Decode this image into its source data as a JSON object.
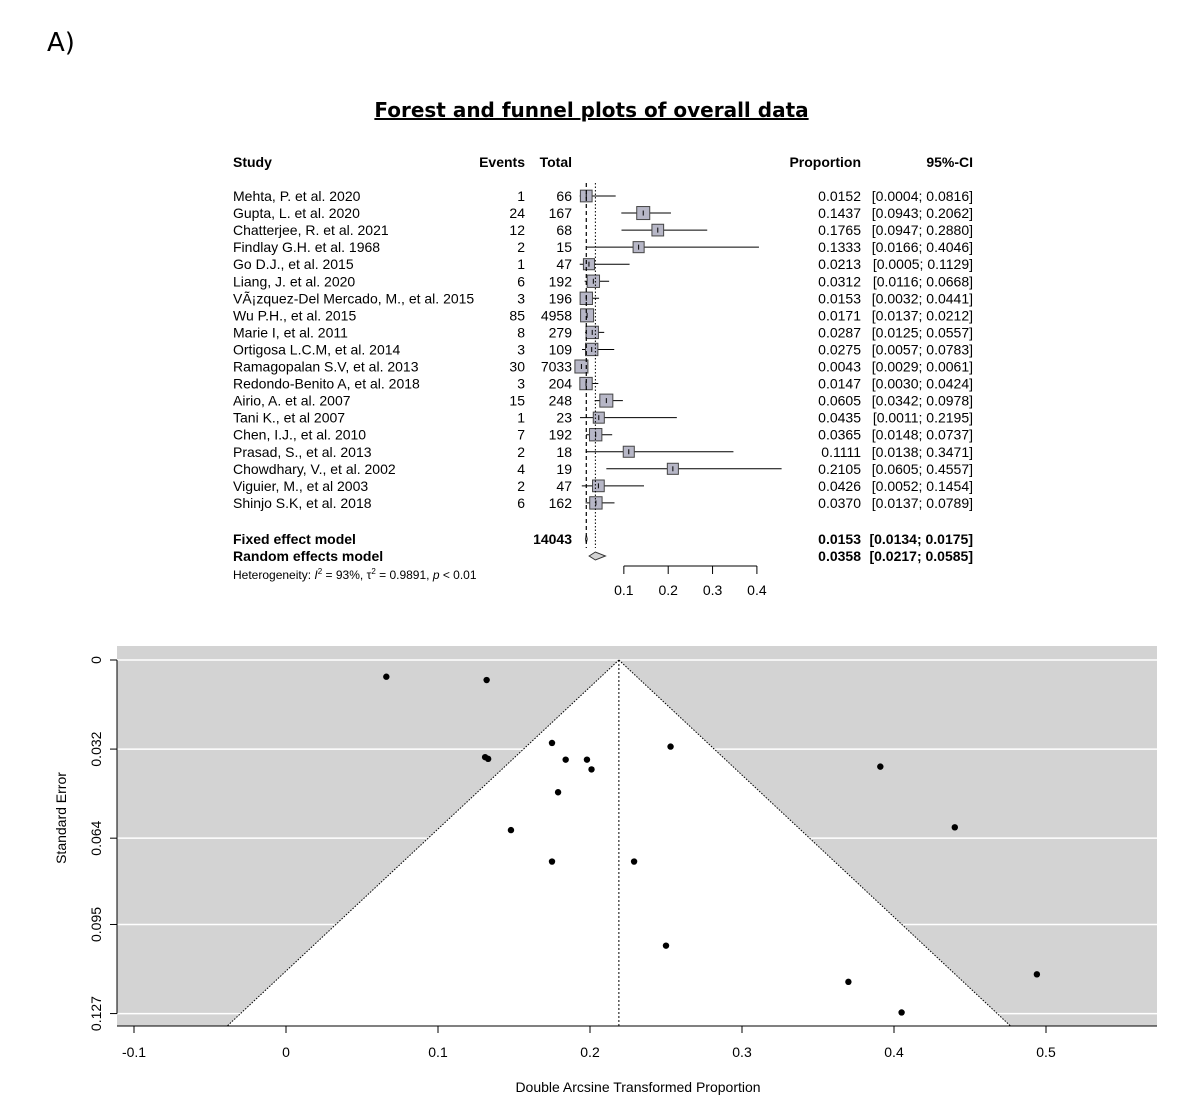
{
  "panel_label": "A)",
  "title": "Forest and funnel plots of overall data",
  "chart_data": [
    {
      "type": "forest",
      "headers": {
        "study": "Study",
        "events": "Events",
        "total": "Total",
        "proportion": "Proportion",
        "ci": "95%-CI"
      },
      "xaxis": {
        "ticks": [
          0.1,
          0.2,
          0.3,
          0.4
        ],
        "xlim": [
          0,
          0.5
        ]
      },
      "reference_lines": {
        "fixed": 0.0153,
        "random": 0.0358
      },
      "studies": [
        {
          "name": "Mehta, P. et al. 2020",
          "events": "1",
          "total": "66",
          "proportion": "0.0152",
          "ci": "[0.0004; 0.0816]",
          "est": 0.0152,
          "lower": 0.0004,
          "upper": 0.0816,
          "weight": 0.9
        },
        {
          "name": "Gupta, L. et al. 2020",
          "events": "24",
          "total": "167",
          "proportion": "0.1437",
          "ci": "[0.0943; 0.2062]",
          "est": 0.1437,
          "lower": 0.0943,
          "upper": 0.2062,
          "weight": 1.0
        },
        {
          "name": "Chatterjee, R. et al. 2021",
          "events": "12",
          "total": "68",
          "proportion": "0.1765",
          "ci": "[0.0947; 0.2880]",
          "est": 0.1765,
          "lower": 0.0947,
          "upper": 0.288,
          "weight": 0.9
        },
        {
          "name": "Findlay G.H. et al. 1968",
          "events": "2",
          "total": "15",
          "proportion": "0.1333",
          "ci": "[0.0166; 0.4046]",
          "est": 0.1333,
          "lower": 0.0166,
          "upper": 0.4046,
          "weight": 0.85
        },
        {
          "name": "Go D.J., et al. 2015",
          "events": "1",
          "total": "47",
          "proportion": "0.0213",
          "ci": "[0.0005; 0.1129]",
          "est": 0.0213,
          "lower": 0.0005,
          "upper": 0.1129,
          "weight": 0.85
        },
        {
          "name": "Liang, J. et al. 2020",
          "events": "6",
          "total": "192",
          "proportion": "0.0312",
          "ci": "[0.0116; 0.0668]",
          "est": 0.0312,
          "lower": 0.0116,
          "upper": 0.0668,
          "weight": 0.95
        },
        {
          "name": "VÃ¡zquez-Del Mercado, M., et al. 2015",
          "events": "3",
          "total": "196",
          "proportion": "0.0153",
          "ci": "[0.0032; 0.0441]",
          "est": 0.0153,
          "lower": 0.0032,
          "upper": 0.0441,
          "weight": 0.95
        },
        {
          "name": "Wu P.H., et al. 2015",
          "events": "85",
          "total": "4958",
          "proportion": "0.0171",
          "ci": "[0.0137; 0.0212]",
          "est": 0.0171,
          "lower": 0.0137,
          "upper": 0.0212,
          "weight": 1.0
        },
        {
          "name": "Marie I, et al. 2011",
          "events": "8",
          "total": "279",
          "proportion": "0.0287",
          "ci": "[0.0125; 0.0557]",
          "est": 0.0287,
          "lower": 0.0125,
          "upper": 0.0557,
          "weight": 0.95
        },
        {
          "name": "Ortigosa L.C.M, et al. 2014",
          "events": "3",
          "total": "109",
          "proportion": "0.0275",
          "ci": "[0.0057; 0.0783]",
          "est": 0.0275,
          "lower": 0.0057,
          "upper": 0.0783,
          "weight": 0.95
        },
        {
          "name": "Ramagopalan S.V, et al. 2013",
          "events": "30",
          "total": "7033",
          "proportion": "0.0043",
          "ci": "[0.0029; 0.0061]",
          "est": 0.0043,
          "lower": 0.0029,
          "upper": 0.0061,
          "weight": 1.0
        },
        {
          "name": "Redondo-Benito A, et al. 2018",
          "events": "3",
          "total": "204",
          "proportion": "0.0147",
          "ci": "[0.0030; 0.0424]",
          "est": 0.0147,
          "lower": 0.003,
          "upper": 0.0424,
          "weight": 0.95
        },
        {
          "name": "Airio, A. et al. 2007",
          "events": "15",
          "total": "248",
          "proportion": "0.0605",
          "ci": "[0.0342; 0.0978]",
          "est": 0.0605,
          "lower": 0.0342,
          "upper": 0.0978,
          "weight": 1.0
        },
        {
          "name": "Tani K., et al 2007",
          "events": "1",
          "total": "23",
          "proportion": "0.0435",
          "ci": "[0.0011; 0.2195]",
          "est": 0.0435,
          "lower": 0.0011,
          "upper": 0.2195,
          "weight": 0.85
        },
        {
          "name": "Chen, I.J., et al. 2010",
          "events": "7",
          "total": "192",
          "proportion": "0.0365",
          "ci": "[0.0148; 0.0737]",
          "est": 0.0365,
          "lower": 0.0148,
          "upper": 0.0737,
          "weight": 0.95
        },
        {
          "name": "Prasad, S., et al. 2013",
          "events": "2",
          "total": "18",
          "proportion": "0.1111",
          "ci": "[0.0138; 0.3471]",
          "est": 0.1111,
          "lower": 0.0138,
          "upper": 0.3471,
          "weight": 0.85
        },
        {
          "name": "Chowdhary, V., et al. 2002",
          "events": "4",
          "total": "19",
          "proportion": "0.2105",
          "ci": "[0.0605; 0.4557]",
          "est": 0.2105,
          "lower": 0.0605,
          "upper": 0.4557,
          "weight": 0.85
        },
        {
          "name": "Viguier, M., et al 2003",
          "events": "2",
          "total": "47",
          "proportion": "0.0426",
          "ci": "[0.0052; 0.1454]",
          "est": 0.0426,
          "lower": 0.0052,
          "upper": 0.1454,
          "weight": 0.9
        },
        {
          "name": "Shinjo S.K, et al. 2018",
          "events": "6",
          "total": "162",
          "proportion": "0.0370",
          "ci": "[0.0137; 0.0789]",
          "est": 0.037,
          "lower": 0.0137,
          "upper": 0.0789,
          "weight": 0.95
        }
      ],
      "summaries": [
        {
          "name": "Fixed effect model",
          "total": "14043",
          "proportion": "0.0153",
          "ci": "[0.0134; 0.0175]",
          "est": 0.0153,
          "lower": 0.0134,
          "upper": 0.0175
        },
        {
          "name": "Random effects model",
          "total": "",
          "proportion": "0.0358",
          "ci": "[0.0217; 0.0585]",
          "est": 0.0358,
          "lower": 0.0217,
          "upper": 0.0585
        }
      ],
      "heterogeneity": {
        "prefix": "Heterogeneity: ",
        "i2_symbol": "I",
        "i2": " = 93%, ",
        "tau2_symbol": "τ",
        "tau2": " = 0.9891, ",
        "p_symbol": "p",
        "p": " < 0.01",
        "sup": "2"
      }
    },
    {
      "type": "scatter",
      "subtype": "funnel",
      "xlabel": "Double Arcsine Transformed Proportion",
      "ylabel": "Standard Error",
      "xlim": [
        -0.1,
        0.57
      ],
      "ylim": [
        0.1275,
        0
      ],
      "xticks": [
        -0.1,
        0,
        0.1,
        0.2,
        0.3,
        0.4,
        0.5
      ],
      "xtick_labels": [
        "-0.1",
        "0",
        "0.1",
        "0.2",
        "0.3",
        "0.4",
        "0.5"
      ],
      "yticks": [
        0,
        0.032,
        0.064,
        0.095,
        0.127
      ],
      "ytick_labels": [
        "0",
        "0.032",
        "0.064",
        "0.095",
        "0.127"
      ],
      "center": 0.219,
      "points": [
        {
          "x": 0.066,
          "y": 0.006
        },
        {
          "x": 0.132,
          "y": 0.0072
        },
        {
          "x": 0.175,
          "y": 0.0298
        },
        {
          "x": 0.253,
          "y": 0.0311
        },
        {
          "x": 0.184,
          "y": 0.0358
        },
        {
          "x": 0.198,
          "y": 0.0358
        },
        {
          "x": 0.201,
          "y": 0.0393
        },
        {
          "x": 0.131,
          "y": 0.0349
        },
        {
          "x": 0.133,
          "y": 0.0355
        },
        {
          "x": 0.179,
          "y": 0.0475
        },
        {
          "x": 0.391,
          "y": 0.0383
        },
        {
          "x": 0.148,
          "y": 0.0611
        },
        {
          "x": 0.44,
          "y": 0.0601
        },
        {
          "x": 0.175,
          "y": 0.0724
        },
        {
          "x": 0.229,
          "y": 0.0724
        },
        {
          "x": 0.25,
          "y": 0.1026
        },
        {
          "x": 0.494,
          "y": 0.1129
        },
        {
          "x": 0.37,
          "y": 0.1156
        },
        {
          "x": 0.405,
          "y": 0.1266
        }
      ]
    }
  ]
}
